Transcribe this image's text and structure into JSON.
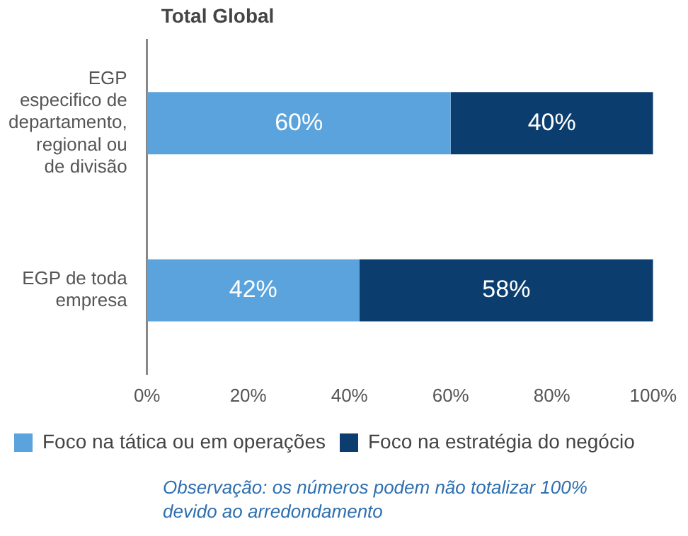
{
  "chart_data": {
    "type": "bar",
    "orientation": "horizontal",
    "stacked": true,
    "title": "Total Global",
    "categories": [
      "EGP especifico de departamento, regional ou de divisão",
      "EGP de toda empresa"
    ],
    "series": [
      {
        "name": "Foco na tática ou em operações",
        "color": "#5ba3dc",
        "values": [
          60,
          42
        ],
        "value_labels": [
          "60%",
          "42%"
        ]
      },
      {
        "name": "Foco na estratégia do negócio",
        "color": "#0b3e6f",
        "values": [
          40,
          58
        ],
        "value_labels": [
          "40%",
          "58%"
        ]
      }
    ],
    "xlim": [
      0,
      100
    ],
    "xticks": [
      {
        "value": 0,
        "label": "0%"
      },
      {
        "value": 20,
        "label": "20%"
      },
      {
        "value": 40,
        "label": "40%"
      },
      {
        "value": 60,
        "label": "60%"
      },
      {
        "value": 80,
        "label": "80%"
      },
      {
        "value": 100,
        "label": "100%"
      }
    ],
    "grid": false,
    "legend": "bottom",
    "annotations": [
      "Observação: os números podem não totalizar 100% devido ao arredondamento"
    ]
  }
}
